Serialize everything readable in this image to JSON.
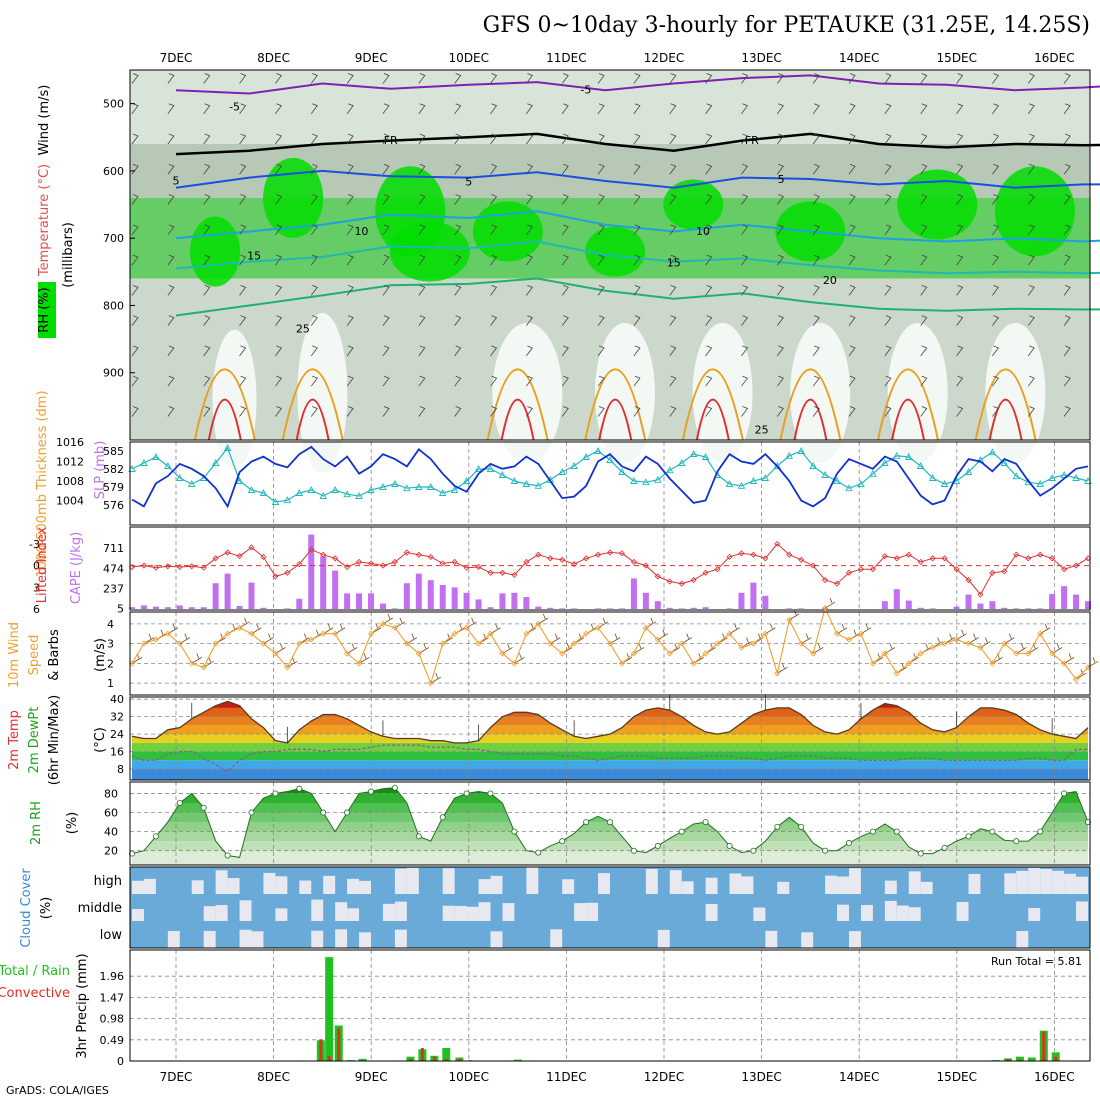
{
  "page": {
    "title": "GFS 0~10day 3-hourly for PETAUKE (31.25E, 14.25S)",
    "footer": "GrADS: COLA/IGES",
    "dates": [
      "7DEC",
      "8DEC",
      "9DEC",
      "10DEC",
      "11DEC",
      "12DEC",
      "13DEC",
      "14DEC",
      "15DEC",
      "16DEC"
    ]
  },
  "colors": {
    "rh_green": "#00dd00",
    "rh_mid": "#66cc66",
    "rh_grey": "#b7c8b7",
    "slp": "#1030d0",
    "thickness": "#20b8c0",
    "lifted_index": "#e03030",
    "cape": "#c070f0",
    "wind": "#f0a030",
    "rh2m": "#20a020",
    "cloud_blue": "#6aaad8",
    "cloud_clear": "#e8e8f0",
    "precip_total": "#20c020",
    "precip_conv": "#e03020"
  },
  "chart_data": [
    {
      "type": "heatmap",
      "panel": "upper-air",
      "ylabel": "(millibars)",
      "side_labels": [
        "Wind (m/s)",
        "Temperature (°C)",
        "RH (%)"
      ],
      "yticks": [
        500,
        600,
        700,
        800,
        900
      ],
      "ylim": [
        1000,
        450
      ],
      "contour_labels": [
        "-5",
        "-5",
        "FR",
        "FR",
        "5",
        "5",
        "5",
        "10",
        "10",
        "15",
        "15",
        "20",
        "25",
        "25"
      ],
      "temperature_contours": [
        {
          "label": "-5",
          "pressure": [
            480,
            485,
            470,
            478,
            472,
            468,
            480,
            470,
            462,
            458,
            470,
            472,
            480,
            476,
            470
          ]
        },
        {
          "label": "FR",
          "pressure": [
            575,
            570,
            560,
            555,
            550,
            545,
            560,
            570,
            555,
            545,
            560,
            565,
            560,
            562,
            560
          ]
        },
        {
          "label": "5",
          "pressure": [
            625,
            610,
            600,
            608,
            610,
            602,
            615,
            625,
            610,
            612,
            620,
            615,
            625,
            620,
            620
          ]
        },
        {
          "label": "10",
          "pressure": [
            700,
            690,
            680,
            665,
            670,
            660,
            680,
            690,
            680,
            690,
            700,
            705,
            700,
            705,
            700
          ]
        },
        {
          "label": "15",
          "pressure": [
            745,
            735,
            728,
            712,
            715,
            705,
            725,
            735,
            730,
            740,
            748,
            752,
            750,
            752,
            750
          ]
        },
        {
          "label": "20",
          "pressure": [
            815,
            800,
            785,
            770,
            768,
            760,
            778,
            790,
            782,
            795,
            805,
            808,
            805,
            806,
            805
          ]
        }
      ],
      "contour_times": [
        0,
        0.75,
        1.5,
        2.2,
        3.0,
        3.7,
        4.4,
        5.1,
        5.8,
        6.5,
        7.2,
        7.9,
        8.6,
        9.3,
        9.95
      ]
    },
    {
      "type": "line",
      "panel": "slp-thickness",
      "ylabel_left": "1000-500mb Thickness (dm)",
      "ylabel_right": "SLP (mb)",
      "yticks_left": [
        576,
        579,
        582,
        585
      ],
      "yticks_right": [
        1004,
        1008,
        1012,
        1016
      ],
      "series": [
        {
          "name": "SLP (mb)",
          "axis": "right",
          "values": [
            1004.2,
            1002.8,
            1007.5,
            1009.0,
            1011.5,
            1010.5,
            1009.0,
            1006.5,
            1002.8,
            1009.8,
            1012.0,
            1013.0,
            1011.5,
            1010.8,
            1013.5,
            1015.0,
            1012.5,
            1011.0,
            1013.0,
            1009.5,
            1011.0,
            1013.5,
            1012.5,
            1011.0,
            1014.5,
            1012.5,
            1009.5,
            1007.0,
            1005.8,
            1009.5,
            1011.5,
            1010.5,
            1011.0,
            1013.0,
            1011.5,
            1008.0,
            1004.5,
            1004.8,
            1007.0,
            1012.0,
            1013.5,
            1011.0,
            1010.0,
            1013.0,
            1011.5,
            1008.5,
            1006.0,
            1003.5,
            1004.0,
            1010.0,
            1013.5,
            1012.0,
            1011.5,
            1013.5,
            1011.0,
            1008.0,
            1004.0,
            1002.8,
            1004.5,
            1009.5,
            1012.5,
            1011.5,
            1010.5,
            1013.0,
            1012.0,
            1008.5,
            1005.0,
            1003.2,
            1004.0,
            1009.0,
            1012.5,
            1012.0,
            1010.0,
            1012.5,
            1011.5,
            1008.0,
            1005.0,
            1006.5,
            1008.5,
            1010.5,
            1011.0
          ]
        },
        {
          "name": "1000-500mb Thickness (dm)",
          "axis": "left",
          "values": [
            582.0,
            583.0,
            584.0,
            582.5,
            580.5,
            579.5,
            580.5,
            583.0,
            585.5,
            580.0,
            578.5,
            578.0,
            576.5,
            576.8,
            578.0,
            578.5,
            577.5,
            578.5,
            577.8,
            577.5,
            578.5,
            579.0,
            579.5,
            578.8,
            579.0,
            579.0,
            578.0,
            578.5,
            580.0,
            582.0,
            582.0,
            581.0,
            580.0,
            579.5,
            579.2,
            580.2,
            581.5,
            582.5,
            584.0,
            585.0,
            583.5,
            581.5,
            580.0,
            579.8,
            580.2,
            581.8,
            583.0,
            584.5,
            584.0,
            581.0,
            579.5,
            579.2,
            580.0,
            580.5,
            582.5,
            584.2,
            585.0,
            582.5,
            581.0,
            580.0,
            578.8,
            579.5,
            581.2,
            583.0,
            584.2,
            584.0,
            582.5,
            580.5,
            579.5,
            580.0,
            581.5,
            583.5,
            584.8,
            583.0,
            580.8,
            579.8,
            579.5,
            580.5,
            581.0,
            580.5,
            580.0
          ]
        }
      ]
    },
    {
      "type": "bar",
      "panel": "cape-lifted-index",
      "ylabel_left": "Lifted Index",
      "ylabel_right": "CAPE (J/kg)",
      "yticks_left": [
        "-3",
        "0",
        "3",
        "6"
      ],
      "yticks_right": [
        "711",
        "474",
        "237",
        "5"
      ],
      "cape_values": [
        30,
        60,
        40,
        30,
        60,
        30,
        30,
        430,
        590,
        50,
        440,
        20,
        0,
        10,
        170,
        1240,
        880,
        640,
        260,
        260,
        260,
        90,
        10,
        430,
        590,
        480,
        400,
        360,
        270,
        160,
        30,
        260,
        270,
        200,
        40,
        20,
        10,
        10,
        0,
        10,
        10,
        10,
        510,
        270,
        130,
        20,
        10,
        20,
        30,
        0,
        10,
        270,
        440,
        220,
        0,
        10,
        10,
        0,
        20,
        0,
        0,
        0,
        0,
        130,
        330,
        140,
        20,
        10,
        0,
        40,
        240,
        90,
        130,
        20,
        10,
        10,
        10,
        250,
        380,
        240,
        130
      ],
      "lifted_index_values": [
        0.2,
        0.0,
        0.3,
        0.1,
        0.2,
        0.1,
        0.3,
        -1.0,
        -1.8,
        -1.3,
        -2.5,
        -1.2,
        1.5,
        1.0,
        -0.2,
        -2.2,
        -1.5,
        -1.0,
        0.2,
        -0.5,
        -0.3,
        0.0,
        -0.5,
        -1.8,
        -1.5,
        -1.2,
        -0.3,
        -0.5,
        0.3,
        0.2,
        1.0,
        1.0,
        1.3,
        -0.5,
        -1.5,
        -1.0,
        -0.8,
        -0.2,
        -1.0,
        -1.5,
        -1.8,
        -1.7,
        -0.5,
        0.0,
        1.5,
        2.2,
        2.5,
        2.0,
        1.0,
        0.5,
        -1.2,
        -1.7,
        -1.5,
        -1.0,
        -3.0,
        -1.5,
        -0.8,
        0.0,
        2.0,
        2.5,
        1.0,
        0.5,
        0.5,
        -1.3,
        -1.0,
        -1.5,
        -0.5,
        -1.0,
        -1.0,
        0.5,
        2.0,
        4.0,
        1.0,
        0.8,
        -1.5,
        -1.0,
        -1.5,
        -1.0,
        0.5,
        0.0,
        -1.0
      ],
      "reference_line": 0
    },
    {
      "type": "line",
      "panel": "wind-10m",
      "ylabel": "10m Wind Speed (m/s) & Barbs",
      "yticks": [
        1,
        2,
        3,
        4
      ],
      "ylim": [
        0.4,
        4.6
      ],
      "series": [
        {
          "name": "10m Wind Speed",
          "values": [
            2.0,
            3.0,
            3.2,
            3.5,
            3.0,
            2.0,
            1.8,
            3.0,
            3.5,
            3.8,
            3.5,
            3.0,
            2.5,
            1.8,
            3.0,
            3.2,
            3.5,
            3.5,
            2.5,
            2.0,
            3.5,
            4.0,
            3.8,
            3.0,
            2.5,
            1.0,
            3.0,
            3.5,
            3.8,
            3.0,
            3.5,
            2.5,
            2.0,
            3.5,
            4.0,
            3.0,
            2.5,
            3.0,
            3.5,
            3.8,
            3.0,
            2.0,
            2.5,
            3.8,
            3.2,
            2.5,
            3.0,
            2.0,
            2.5,
            3.0,
            3.5,
            2.8,
            3.0,
            3.5,
            1.5,
            4.2,
            3.0,
            2.5,
            4.8,
            3.5,
            3.2,
            3.5,
            2.0,
            2.5,
            1.5,
            2.0,
            2.5,
            2.8,
            3.0,
            3.2,
            3.0,
            2.8,
            2.0,
            3.0,
            2.5,
            2.5,
            3.5,
            2.5,
            2.0,
            1.2,
            1.8
          ]
        }
      ]
    },
    {
      "type": "area",
      "panel": "temp-2m",
      "ylabel": "2m Temp 2m DewPt (6hr Min/Max) (°C)",
      "yticks": [
        8,
        16,
        24,
        32,
        40
      ],
      "ylim": [
        3,
        41
      ],
      "series": [
        {
          "name": "2m Temp",
          "values": [
            23,
            22,
            22,
            26,
            27,
            31,
            34,
            37,
            39,
            37,
            31,
            27,
            21,
            20,
            26,
            30,
            33,
            33,
            31,
            28,
            25,
            23,
            22,
            22,
            22,
            21,
            21,
            20,
            20,
            21,
            27,
            32,
            34,
            34,
            33,
            29,
            26,
            23,
            22,
            23,
            24,
            27,
            32,
            35,
            36,
            35,
            32,
            28,
            25,
            24,
            25,
            29,
            33,
            35,
            36,
            36,
            33,
            28,
            25,
            24,
            26,
            31,
            35,
            38,
            37,
            34,
            29,
            26,
            25,
            27,
            32,
            36,
            36,
            35,
            33,
            29,
            26,
            24,
            23,
            22,
            27
          ]
        },
        {
          "name": "2m DewPt",
          "values": [
            14,
            12,
            12,
            15,
            16,
            16,
            13,
            10,
            7,
            12,
            15,
            16,
            16,
            17,
            17,
            17,
            16,
            17,
            17,
            17,
            18,
            19,
            19,
            19,
            19,
            18,
            18,
            18,
            17,
            17,
            16,
            15,
            15,
            15,
            15,
            15,
            14,
            14,
            13,
            12,
            13,
            14,
            14,
            14,
            13,
            13,
            13,
            13,
            14,
            14,
            14,
            13,
            13,
            12,
            13,
            14,
            14,
            14,
            13,
            13,
            13,
            12,
            12,
            12,
            12,
            13,
            13,
            13,
            12,
            12,
            12,
            12,
            12,
            12,
            12,
            13,
            13,
            12,
            12,
            17,
            17
          ]
        }
      ]
    },
    {
      "type": "area",
      "panel": "rh-2m",
      "ylabel": "2m RH (%)",
      "yticks": [
        20,
        40,
        60,
        80
      ],
      "ylim": [
        5,
        92
      ],
      "series": [
        {
          "name": "2m RH",
          "values": [
            17,
            20,
            35,
            50,
            70,
            80,
            65,
            30,
            15,
            13,
            60,
            75,
            80,
            82,
            85,
            80,
            60,
            40,
            60,
            80,
            82,
            85,
            86,
            70,
            35,
            30,
            55,
            75,
            80,
            82,
            80,
            70,
            40,
            20,
            18,
            25,
            30,
            38,
            50,
            56,
            50,
            35,
            20,
            18,
            25,
            33,
            40,
            48,
            50,
            40,
            25,
            18,
            20,
            30,
            45,
            55,
            45,
            28,
            20,
            20,
            28,
            35,
            40,
            48,
            40,
            24,
            17,
            17,
            23,
            30,
            35,
            43,
            40,
            31,
            30,
            30,
            40,
            60,
            80,
            82,
            50
          ]
        }
      ]
    },
    {
      "type": "heatmap",
      "panel": "cloud-cover",
      "ylabel": "Cloud Cover (%)",
      "rows": [
        "high",
        "middle",
        "low"
      ]
    },
    {
      "type": "bar",
      "panel": "precip-3hr",
      "ylabel": "3hr Precip (mm)",
      "side_labels": [
        "Total / Rain",
        "Convective"
      ],
      "yticks": [
        0,
        0.49,
        0.98,
        1.47,
        1.96
      ],
      "ylim": [
        0,
        2.45
      ],
      "annotation": "Run Total = 5.81",
      "series": [
        {
          "name": "Total / Rain",
          "points": [
            [
              15.8,
              0.48
            ],
            [
              16.5,
              2.4
            ],
            [
              17.3,
              0.82
            ],
            [
              18.3,
              0.02
            ],
            [
              19.3,
              0.05
            ],
            [
              23.3,
              0.1
            ],
            [
              24.3,
              0.27
            ],
            [
              25.3,
              0.12
            ],
            [
              26.3,
              0.3
            ],
            [
              27.4,
              0.08
            ],
            [
              32.3,
              0.03
            ],
            [
              72.3,
              0.02
            ],
            [
              73.3,
              0.06
            ],
            [
              74.3,
              0.1
            ],
            [
              75.3,
              0.08
            ],
            [
              76.3,
              0.7
            ],
            [
              77.3,
              0.2
            ]
          ]
        },
        {
          "name": "Convective",
          "points": [
            [
              15.8,
              0.5
            ],
            [
              16.5,
              0.12
            ],
            [
              17.3,
              0.75
            ],
            [
              23.3,
              0.05
            ],
            [
              24.3,
              0.3
            ],
            [
              25.3,
              0.1
            ],
            [
              26.3,
              0.05
            ],
            [
              27.4,
              0.05
            ],
            [
              28.3,
              0.02
            ],
            [
              73.3,
              0.05
            ],
            [
              74.3,
              0.03
            ],
            [
              76.3,
              0.68
            ],
            [
              77.3,
              0.1
            ]
          ]
        }
      ]
    }
  ]
}
